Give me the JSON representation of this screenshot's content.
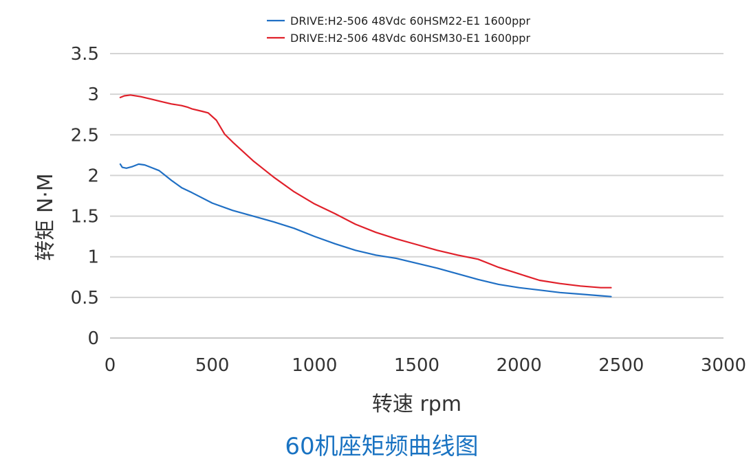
{
  "caption": "60机座矩频曲线图",
  "colors": {
    "series_blue": "#1f6fc4",
    "series_red": "#e0202a",
    "grid": "#d4d4d4",
    "caption": "#1a73c2"
  },
  "chart_data": {
    "type": "line",
    "xlabel": "转速 rpm",
    "ylabel": "转矩 N·M",
    "xlim": [
      0,
      3000
    ],
    "ylim": [
      0,
      3.5
    ],
    "xticks": [
      "0",
      "500",
      "1000",
      "1500",
      "2000",
      "2500",
      "3000"
    ],
    "yticks": [
      "0",
      "0.5",
      "1",
      "1.5",
      "2",
      "2.5",
      "3",
      "3.5"
    ],
    "grid": "horizontal",
    "legend_position": "top",
    "series": [
      {
        "name": "DRIVE:H2-506 48Vdc 60HSM22-E1 1600ppr",
        "color": "#1f6fc4",
        "x": [
          50,
          60,
          80,
          110,
          140,
          170,
          200,
          240,
          270,
          300,
          350,
          400,
          500,
          600,
          700,
          800,
          900,
          1000,
          1100,
          1200,
          1300,
          1400,
          1500,
          1600,
          1700,
          1800,
          1900,
          2000,
          2100,
          2200,
          2300,
          2400,
          2450
        ],
        "y": [
          2.14,
          2.1,
          2.09,
          2.11,
          2.14,
          2.13,
          2.1,
          2.06,
          2.0,
          1.94,
          1.85,
          1.79,
          1.66,
          1.57,
          1.5,
          1.43,
          1.35,
          1.25,
          1.16,
          1.08,
          1.02,
          0.98,
          0.92,
          0.86,
          0.79,
          0.72,
          0.66,
          0.62,
          0.59,
          0.56,
          0.54,
          0.52,
          0.51
        ]
      },
      {
        "name": "DRIVE:H2-506 48Vdc 60HSM30-E1 1600ppr",
        "color": "#e0202a",
        "x": [
          50,
          70,
          100,
          150,
          200,
          250,
          300,
          350,
          380,
          400,
          450,
          480,
          520,
          560,
          600,
          700,
          800,
          900,
          1000,
          1100,
          1200,
          1300,
          1400,
          1500,
          1600,
          1700,
          1800,
          1900,
          2000,
          2100,
          2200,
          2300,
          2400,
          2450
        ],
        "y": [
          2.96,
          2.98,
          2.99,
          2.97,
          2.94,
          2.91,
          2.88,
          2.86,
          2.84,
          2.82,
          2.79,
          2.77,
          2.68,
          2.51,
          2.41,
          2.18,
          1.98,
          1.8,
          1.65,
          1.53,
          1.4,
          1.3,
          1.22,
          1.15,
          1.08,
          1.02,
          0.97,
          0.87,
          0.79,
          0.71,
          0.67,
          0.64,
          0.62,
          0.62
        ]
      }
    ]
  }
}
